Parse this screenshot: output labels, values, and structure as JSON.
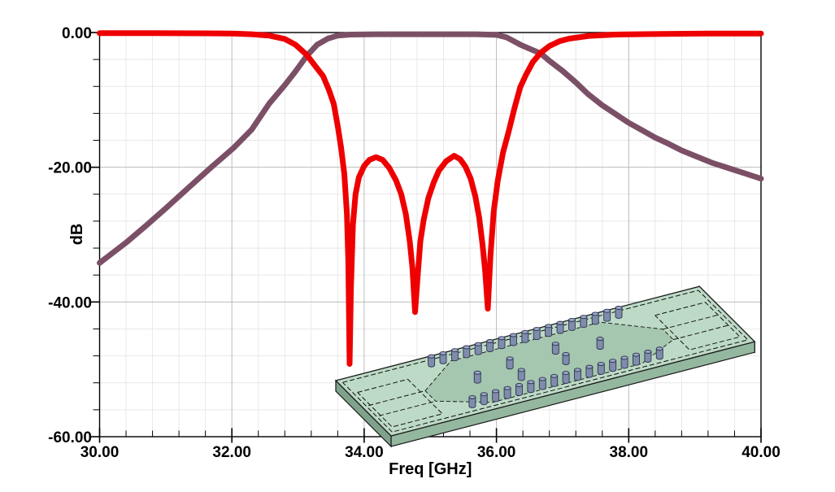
{
  "chart_data": {
    "type": "line",
    "title": "",
    "xlabel": "Freq [GHz]",
    "ylabel": "dB",
    "xlim": [
      30,
      40
    ],
    "ylim": [
      -60,
      0
    ],
    "x_ticks": [
      30,
      32,
      34,
      36,
      38,
      40
    ],
    "y_ticks": [
      0,
      -20,
      -40,
      -60
    ],
    "x_tick_labels": [
      "30.00",
      "32.00",
      "34.00",
      "36.00",
      "38.00",
      "40.00"
    ],
    "y_tick_labels": [
      "0.00",
      "-20.00",
      "-40.00",
      "-60.00"
    ],
    "minor_divisions_per_major": 5,
    "grid": true,
    "legend": "none",
    "grid_minor_color": "#e8e8e8",
    "grid_major_color": "#bbbbbb",
    "frame_color": "#000000",
    "series": [
      {
        "name": "purple-curve",
        "color": "#7b5066",
        "width": 7,
        "points": [
          [
            30,
            -34.2
          ],
          [
            30.4,
            -31.2
          ],
          [
            30.7,
            -28.7
          ],
          [
            31.0,
            -26.1
          ],
          [
            31.36,
            -22.9
          ],
          [
            31.7,
            -19.9
          ],
          [
            32.03,
            -17.1
          ],
          [
            32.3,
            -14.4
          ],
          [
            32.56,
            -10.6
          ],
          [
            32.8,
            -7.8
          ],
          [
            32.96,
            -5.8
          ],
          [
            33.13,
            -3.5
          ],
          [
            33.29,
            -1.8
          ],
          [
            33.45,
            -0.9
          ],
          [
            33.6,
            -0.45
          ],
          [
            33.8,
            -0.3
          ],
          [
            34.2,
            -0.25
          ],
          [
            35.0,
            -0.25
          ],
          [
            35.7,
            -0.25
          ],
          [
            36.0,
            -0.35
          ],
          [
            36.15,
            -0.7
          ],
          [
            36.36,
            -1.8
          ],
          [
            36.5,
            -2.4
          ],
          [
            36.67,
            -3.1
          ],
          [
            36.8,
            -4.2
          ],
          [
            37.0,
            -5.7
          ],
          [
            37.2,
            -7.4
          ],
          [
            37.38,
            -9.1
          ],
          [
            37.6,
            -10.8
          ],
          [
            37.8,
            -12.1
          ],
          [
            38.0,
            -13.4
          ],
          [
            38.2,
            -14.5
          ],
          [
            38.4,
            -15.6
          ],
          [
            38.6,
            -16.5
          ],
          [
            38.8,
            -17.5
          ],
          [
            39.0,
            -18.3
          ],
          [
            39.25,
            -19.3
          ],
          [
            39.5,
            -20.1
          ],
          [
            39.75,
            -20.9
          ],
          [
            40.0,
            -21.7
          ]
        ]
      },
      {
        "name": "red-curve",
        "color": "#ee0000",
        "width": 7,
        "points": [
          [
            30,
            -0.1
          ],
          [
            30.8,
            -0.1
          ],
          [
            31.6,
            -0.12
          ],
          [
            32.0,
            -0.15
          ],
          [
            32.3,
            -0.25
          ],
          [
            32.56,
            -0.45
          ],
          [
            32.8,
            -0.95
          ],
          [
            32.96,
            -1.8
          ],
          [
            33.13,
            -3.3
          ],
          [
            33.28,
            -5.2
          ],
          [
            33.38,
            -6.5
          ],
          [
            33.47,
            -8.6
          ],
          [
            33.54,
            -10.6
          ],
          [
            33.6,
            -13.9
          ],
          [
            33.65,
            -17
          ],
          [
            33.7,
            -21
          ],
          [
            33.74,
            -27
          ],
          [
            33.76,
            -34
          ],
          [
            33.78,
            -49.2
          ],
          [
            33.8,
            -38
          ],
          [
            33.83,
            -28.5
          ],
          [
            33.87,
            -24
          ],
          [
            33.92,
            -21.5
          ],
          [
            34.0,
            -19.8
          ],
          [
            34.08,
            -18.9
          ],
          [
            34.18,
            -18.5
          ],
          [
            34.28,
            -18.9
          ],
          [
            34.38,
            -20.1
          ],
          [
            34.48,
            -21.9
          ],
          [
            34.56,
            -24
          ],
          [
            34.63,
            -27
          ],
          [
            34.69,
            -31
          ],
          [
            34.73,
            -35
          ],
          [
            34.77,
            -41.5
          ],
          [
            34.81,
            -36
          ],
          [
            34.85,
            -31
          ],
          [
            34.9,
            -27.8
          ],
          [
            34.97,
            -24.6
          ],
          [
            35.05,
            -22.3
          ],
          [
            35.13,
            -20.5
          ],
          [
            35.24,
            -19.1
          ],
          [
            35.36,
            -18.3
          ],
          [
            35.45,
            -18.8
          ],
          [
            35.53,
            -19.9
          ],
          [
            35.61,
            -21.7
          ],
          [
            35.68,
            -24.3
          ],
          [
            35.74,
            -27.5
          ],
          [
            35.79,
            -31.5
          ],
          [
            35.83,
            -35.5
          ],
          [
            35.87,
            -41
          ],
          [
            35.91,
            -33
          ],
          [
            35.96,
            -26.5
          ],
          [
            36.02,
            -22
          ],
          [
            36.1,
            -17.8
          ],
          [
            36.18,
            -14.9
          ],
          [
            36.27,
            -11.3
          ],
          [
            36.36,
            -8.1
          ],
          [
            36.45,
            -6.2
          ],
          [
            36.55,
            -4.4
          ],
          [
            36.67,
            -3
          ],
          [
            36.8,
            -2
          ],
          [
            36.95,
            -1.3
          ],
          [
            37.1,
            -0.9
          ],
          [
            37.4,
            -0.5
          ],
          [
            37.8,
            -0.3
          ],
          [
            38.5,
            -0.2
          ],
          [
            39.2,
            -0.15
          ],
          [
            40,
            -0.15
          ]
        ]
      }
    ]
  },
  "inset_model": {
    "substrate_top_color": "#bddac6",
    "cavity_color": "#a5c7af",
    "side_color_left": "#7fa28c",
    "side_color_front": "#94b89f",
    "side_color_right": "#a9c9b3",
    "outline_color": "#1a1a1a",
    "dash_color": "#111111",
    "via_body_color": "#7f8cab",
    "via_top_color": "#9aa6c4",
    "via_outline_color": "#2e3450",
    "edge_via_rows": 2,
    "edge_vias_per_row": 17,
    "interior_vias": 6
  }
}
